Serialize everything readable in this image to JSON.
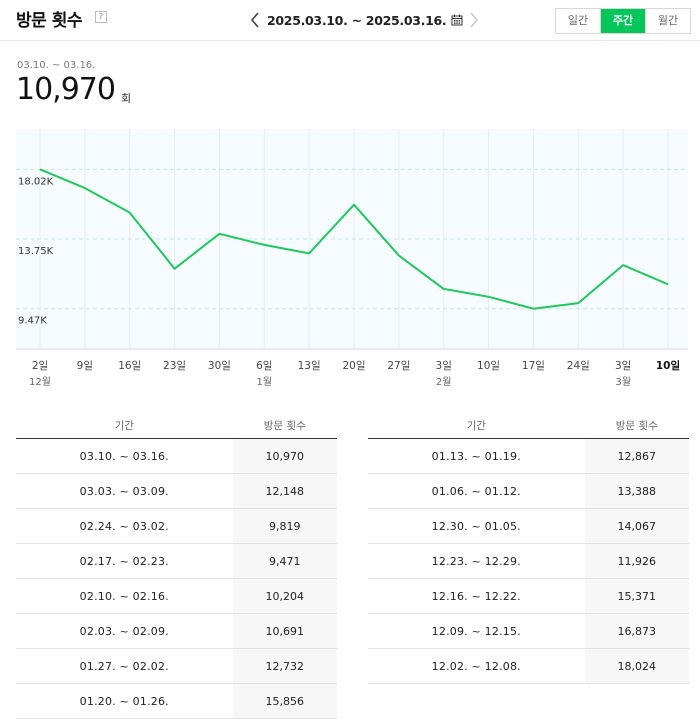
{
  "header": {
    "title": "방문 횟수",
    "help_icon": "question-icon",
    "date_range": "2025.03.10. ~ 2025.03.16.",
    "prev_icon": "chevron-left-icon",
    "next_icon": "chevron-right-icon",
    "calendar_icon": "calendar-icon",
    "tabs": [
      {
        "label": "일간",
        "active": false
      },
      {
        "label": "주간",
        "active": true
      },
      {
        "label": "월간",
        "active": false
      }
    ]
  },
  "summary": {
    "range": "03.10. ~ 03.16.",
    "value": "10,970",
    "unit": "회"
  },
  "colors": {
    "accent": "#03c75a",
    "line": "#1fc85e",
    "plot_bg": "#f5fbfe"
  },
  "chart_data": {
    "type": "line",
    "x_labels": [
      "2일",
      "9일",
      "16일",
      "23일",
      "30일",
      "6일",
      "13일",
      "20일",
      "27일",
      "3일",
      "10일",
      "17일",
      "24일",
      "3일",
      "10일"
    ],
    "x_sublabels": [
      "12월",
      "",
      "",
      "",
      "",
      "1월",
      "",
      "",
      "",
      "2월",
      "",
      "",
      "",
      "3월",
      ""
    ],
    "y_ticks": [
      {
        "value": 18020,
        "label": "18.02K"
      },
      {
        "value": 13750,
        "label": "13.75K"
      },
      {
        "value": 9470,
        "label": "9.47K"
      }
    ],
    "ylim": [
      7000,
      20500
    ],
    "grid": true,
    "series": [
      {
        "values": [
          18024,
          16873,
          15371,
          11926,
          14067,
          13388,
          12867,
          15856,
          12732,
          10691,
          10204,
          9471,
          9819,
          12148,
          10970
        ]
      }
    ]
  },
  "tables": [
    {
      "headers": [
        "기간",
        "방문 횟수"
      ],
      "rows": [
        [
          "03.10. ~ 03.16.",
          "10,970"
        ],
        [
          "03.03. ~ 03.09.",
          "12,148"
        ],
        [
          "02.24. ~ 03.02.",
          "9,819"
        ],
        [
          "02.17. ~ 02.23.",
          "9,471"
        ],
        [
          "02.10. ~ 02.16.",
          "10,204"
        ],
        [
          "02.03. ~ 02.09.",
          "10,691"
        ],
        [
          "01.27. ~ 02.02.",
          "12,732"
        ],
        [
          "01.20. ~ 01.26.",
          "15,856"
        ]
      ]
    },
    {
      "headers": [
        "기간",
        "방문 횟수"
      ],
      "rows": [
        [
          "01.13. ~ 01.19.",
          "12,867"
        ],
        [
          "01.06. ~ 01.12.",
          "13,388"
        ],
        [
          "12.30. ~ 01.05.",
          "14,067"
        ],
        [
          "12.23. ~ 12.29.",
          "11,926"
        ],
        [
          "12.16. ~ 12.22.",
          "15,371"
        ],
        [
          "12.09. ~ 12.15.",
          "16,873"
        ],
        [
          "12.02. ~ 12.08.",
          "18,024"
        ]
      ]
    }
  ]
}
